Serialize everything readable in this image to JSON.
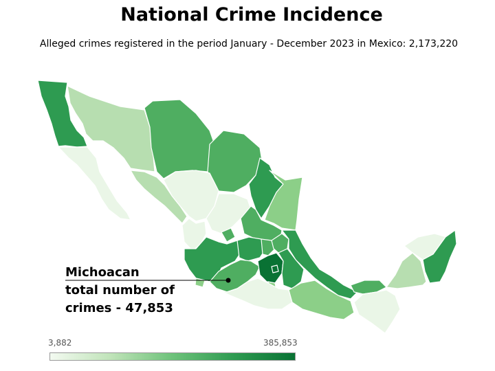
{
  "title": "National Crime Incidence",
  "subtitle": "Alleged crimes registered in the period January - December 2023  in Mexico: 2,173,220",
  "callout": {
    "state": "Michoacan",
    "line2": "total number of",
    "line3": "crimes - 47,853"
  },
  "legend": {
    "min_label": "3,882",
    "max_label": "385,853",
    "colors": [
      "#f3faf1",
      "#bfe3b8",
      "#6dc27a",
      "#2e9b51",
      "#097234"
    ]
  },
  "colors": {
    "very_light": "#eaf6e7",
    "light": "#b7deb0",
    "medium_light": "#8ccf88",
    "medium": "#4fae61",
    "dark": "#2e9b51",
    "darkest": "#097234"
  }
}
